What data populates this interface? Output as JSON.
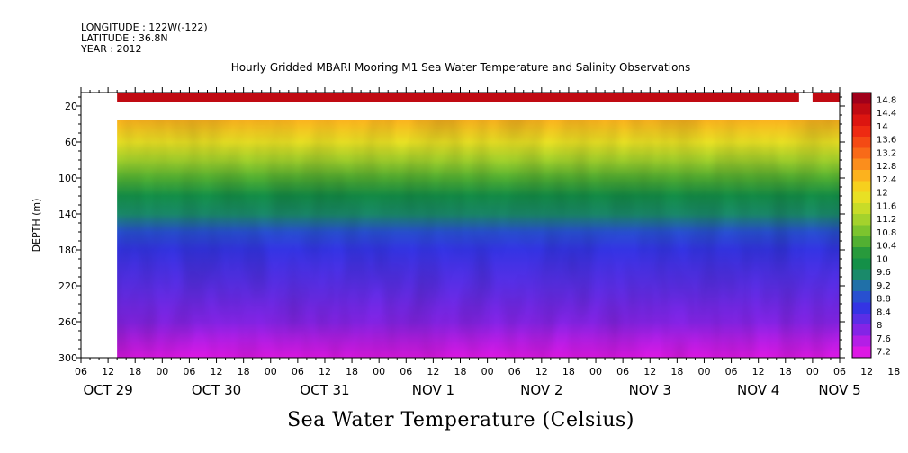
{
  "header": {
    "longitude": "LONGITUDE : 122W(-122)",
    "latitude": "LATITUDE : 36.8N",
    "year": "YEAR : 2012"
  },
  "chart_data": {
    "type": "heatmap",
    "title": "Hourly Gridded MBARI Mooring M1 Sea Water Temperature and Salinity Observations",
    "xlabel": "Sea Water Temperature (Celsius)",
    "ylabel": "DEPTH (m)",
    "x_range_hours": [
      -6,
      162
    ],
    "x_hour_ticks": [
      "06",
      "12",
      "18",
      "00",
      "06",
      "12",
      "18",
      "00",
      "06",
      "12",
      "18",
      "00",
      "06",
      "12",
      "18",
      "00",
      "06",
      "12",
      "18",
      "00",
      "06",
      "12",
      "18",
      "00",
      "06",
      "12",
      "18",
      "00",
      "06",
      "12",
      "18",
      "00",
      "06"
    ],
    "date_labels": [
      {
        "label": "OCT 29",
        "hour": 0
      },
      {
        "label": "OCT 30",
        "hour": 24
      },
      {
        "label": "OCT 31",
        "hour": 48
      },
      {
        "label": "NOV  1",
        "hour": 72
      },
      {
        "label": "NOV  2",
        "hour": 96
      },
      {
        "label": "NOV  3",
        "hour": 120
      },
      {
        "label": "NOV  4",
        "hour": 144
      },
      {
        "label": "NOV  5",
        "hour": 162
      }
    ],
    "y_range": [
      300,
      5
    ],
    "y_ticks": [
      20,
      60,
      100,
      140,
      180,
      220,
      260,
      300
    ],
    "data_x_range_hours": [
      2,
      162
    ],
    "surface_layer": {
      "depth_range": [
        5,
        15
      ],
      "value": 14.5,
      "gap_hours": [
        153,
        156
      ]
    },
    "main_layer_depth_range": [
      35,
      300
    ],
    "profile_depths": [
      35,
      60,
      80,
      100,
      120,
      140,
      160,
      180,
      220,
      260,
      280,
      300
    ],
    "profile_values": [
      12.6,
      12.0,
      11.2,
      10.6,
      10.0,
      9.4,
      9.0,
      8.6,
      8.2,
      7.9,
      7.6,
      7.3
    ],
    "colorbar": {
      "ticks": [
        14.8,
        14.4,
        14,
        13.6,
        13.2,
        12.8,
        12.4,
        12,
        11.6,
        11.2,
        10.8,
        10.4,
        10,
        9.6,
        9.2,
        8.8,
        8.4,
        8,
        7.6,
        7.2
      ],
      "labels": [
        "14.8",
        "14.4",
        "14",
        "13.6",
        "13.2",
        "12.8",
        "12.4",
        "12",
        "11.6",
        "11.2",
        "10.8",
        "10.4",
        "10",
        "9.6",
        "9.2",
        "8.8",
        "8.4",
        "8",
        "7.6",
        "7.2"
      ],
      "colors": [
        "#a0001a",
        "#c00a12",
        "#dd1510",
        "#ee2a12",
        "#f44a14",
        "#f86a18",
        "#fb8e1c",
        "#fcb21e",
        "#f6d01e",
        "#e8e024",
        "#c8dc28",
        "#a4d22c",
        "#7cc42e",
        "#52b032",
        "#289a3c",
        "#149048",
        "#1a8a6a",
        "#2070a8",
        "#2850d0",
        "#3434e4",
        "#5a2ee6",
        "#8424e6",
        "#b41ee6",
        "#dc18e4"
      ]
    }
  }
}
